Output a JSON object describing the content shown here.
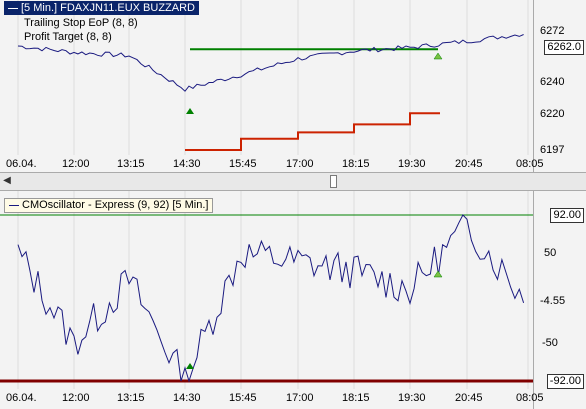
{
  "top_chart": {
    "title": "[5 Min.] FDAXJN11.EUX BUZZARD",
    "legend": [
      "Trailing Stop EoP  (8, 8)",
      "Profit Target  (8, 8)"
    ],
    "y_ticks": [
      "6272",
      "6240",
      "6220",
      "6197"
    ],
    "price_tag": "6262.0"
  },
  "x_labels": [
    "06.04.",
    "12:00",
    "13:15",
    "14:30",
    "15:45",
    "17:00",
    "18:15",
    "19:30",
    "20:45",
    "08:05"
  ],
  "bottom_chart": {
    "title": "CMOscillator - Express  (9, 92) [5 Min.]",
    "y_ticks": [
      "50",
      "-50"
    ],
    "upper_tag": "92.00",
    "current_tag": "-4.55",
    "lower_tag": "-92.00"
  },
  "colors": {
    "price": "#1a1a80",
    "profit_target": "#008000",
    "trailing_stop": "#cc2200",
    "lower_band": "#800000",
    "upper_band": "#008000"
  },
  "chart_data": [
    {
      "type": "line",
      "title": "[5 Min.] FDAXJN11.EUX BUZZARD",
      "categories": [
        "06.04.",
        "12:00",
        "13:15",
        "14:30",
        "15:45",
        "17:00",
        "18:15",
        "19:30",
        "20:45",
        "08:05"
      ],
      "series": [
        {
          "name": "FDAXJN11.EUX",
          "values": [
            6262,
            6258,
            6256,
            6235,
            6244,
            6254,
            6259,
            6261,
            6265,
            6270
          ]
        },
        {
          "name": "Profit Target  (8, 8)",
          "values": [
            null,
            null,
            null,
            6260,
            6260,
            6260,
            6260,
            6260,
            null,
            null
          ]
        },
        {
          "name": "Trailing Stop EoP  (8, 8)",
          "values": [
            null,
            null,
            null,
            6197,
            6204,
            6208,
            6213,
            6220,
            null,
            null
          ]
        }
      ],
      "ylim": [
        6197,
        6272
      ]
    },
    {
      "type": "line",
      "title": "CMOscillator - Express  (9, 92) [5 Min.]",
      "categories": [
        "06.04.",
        "12:00",
        "13:15",
        "14:30",
        "15:45",
        "17:00",
        "18:15",
        "19:30",
        "20:45",
        "08:05"
      ],
      "series": [
        {
          "name": "CMOscillator",
          "values": [
            50,
            -50,
            20,
            -92,
            50,
            40,
            30,
            10,
            80,
            -4.55
          ]
        }
      ],
      "ylim": [
        -92,
        92
      ]
    }
  ]
}
